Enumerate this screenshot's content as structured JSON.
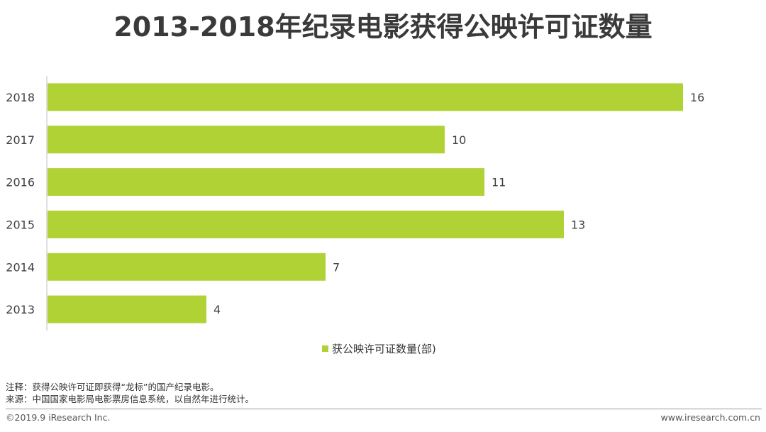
{
  "title": "2013-2018年纪录电影获得公映许可证数量",
  "chart_data": {
    "type": "bar",
    "orientation": "horizontal",
    "title": "2013-2018年纪录电影获得公映许可证数量",
    "categories": [
      "2018",
      "2017",
      "2016",
      "2015",
      "2014",
      "2013"
    ],
    "series": [
      {
        "name": "获公映许可证数量(部)",
        "values": [
          16,
          10,
          11,
          13,
          7,
          4
        ],
        "color": "#b0d234"
      }
    ],
    "xlim": [
      0,
      16
    ],
    "grid": false,
    "data_labels": true,
    "legend_position": "bottom"
  },
  "legend": {
    "label": "获公映许可证数量(部)"
  },
  "notes": {
    "note": "注释：获得公映许可证即获得“龙标”的国产纪录电影。",
    "source": "来源：中国国家电影局电影票房信息系统，以自然年进行统计。"
  },
  "footer": {
    "copyright": "©2019.9 iResearch Inc.",
    "website": "www.iresearch.com.cn"
  }
}
